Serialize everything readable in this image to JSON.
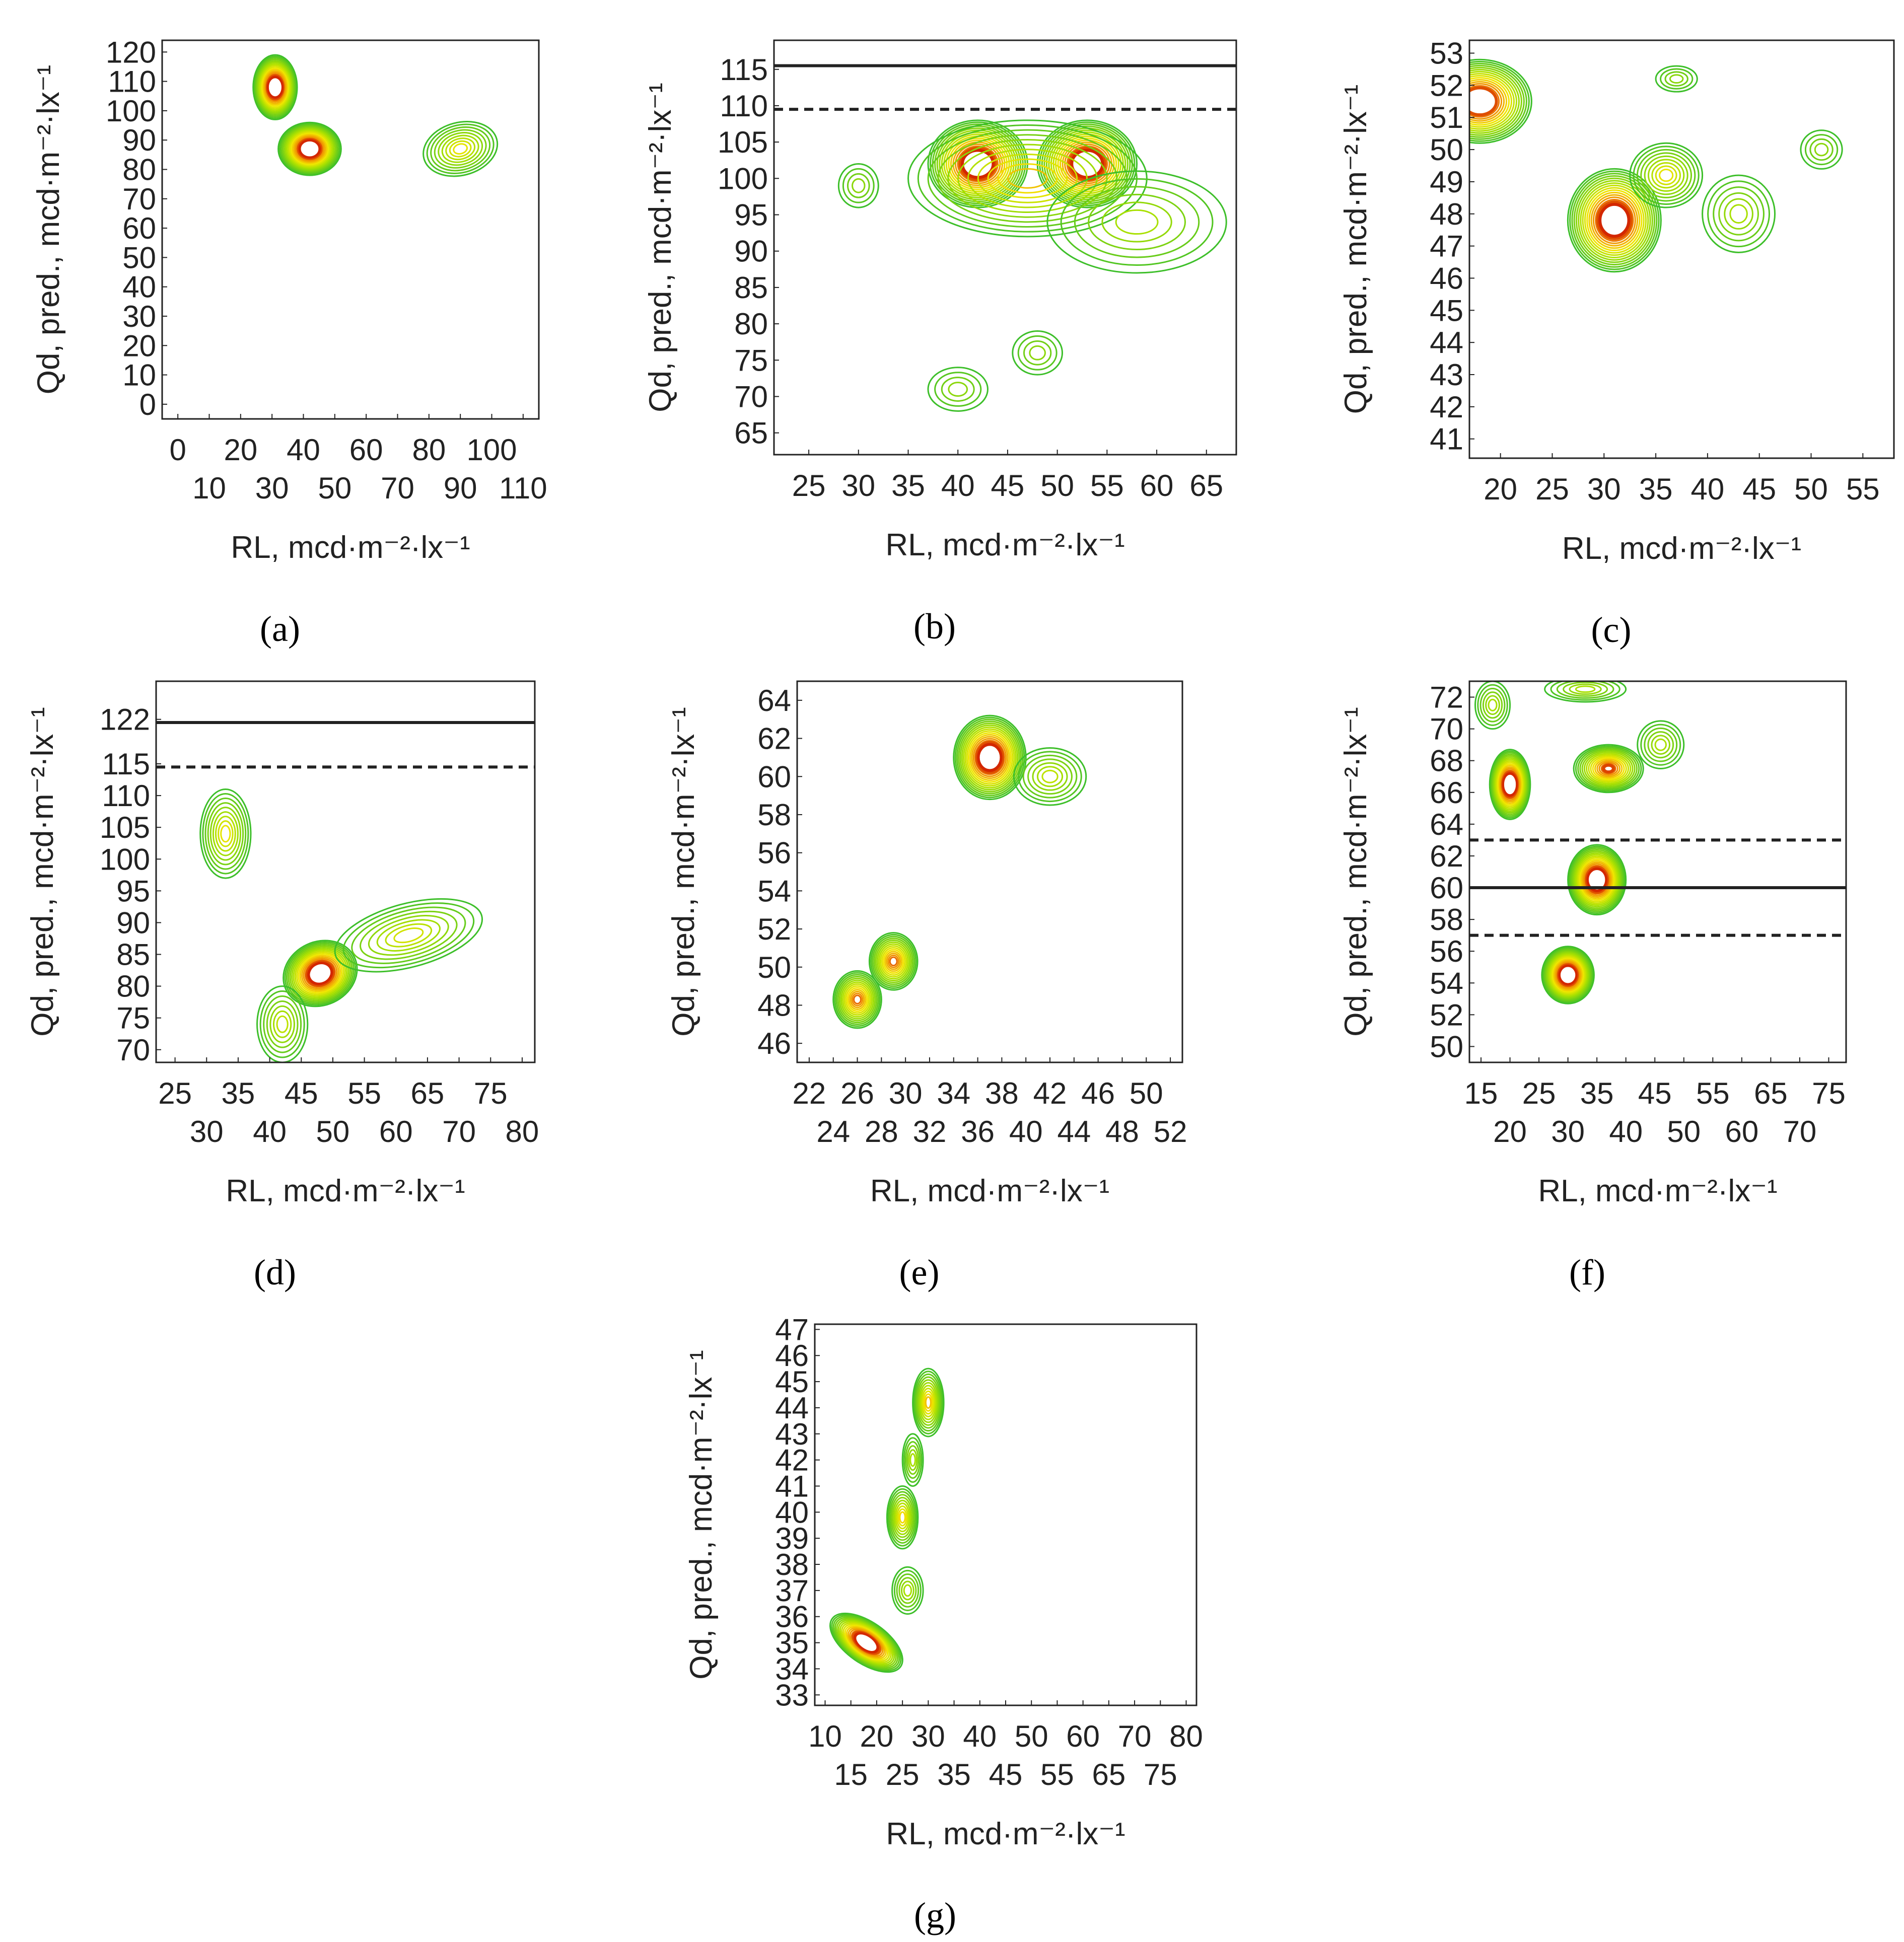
{
  "figure": {
    "colors": {
      "outer": "#3dbf2a",
      "mid": "#a8e000",
      "yellow": "#f2e600",
      "orange": "#f08a00",
      "red": "#c80000",
      "core": "#8b0000",
      "frame": "#222222",
      "refline": "#222222"
    }
  },
  "chart_data": [
    {
      "id": "a",
      "type": "contour",
      "panel_label": "(a)",
      "xlabel": "RL, mcd·m⁻²·lx⁻¹",
      "ylabel": "Qd, pred., mcd·m⁻²·lx⁻¹",
      "xlim": [
        -5,
        115
      ],
      "ylim": [
        -5,
        124
      ],
      "xticks_top": [
        0,
        20,
        40,
        60,
        80,
        100
      ],
      "xticks_bottom": [
        10,
        30,
        50,
        70,
        90,
        110
      ],
      "yticks": [
        0,
        10,
        20,
        30,
        40,
        50,
        60,
        70,
        80,
        90,
        100,
        110,
        120
      ],
      "reference_lines": [],
      "blobs": [
        {
          "x": 31,
          "y": 108,
          "rx": 7,
          "ry": 11,
          "peak": 1.0,
          "rot": 0
        },
        {
          "x": 42,
          "y": 87,
          "rx": 10,
          "ry": 9,
          "peak": 1.0,
          "rot": 0
        },
        {
          "x": 90,
          "y": 87,
          "rx": 12,
          "ry": 9,
          "peak": 0.45,
          "rot": -15
        }
      ]
    },
    {
      "id": "b",
      "type": "contour",
      "panel_label": "(b)",
      "xlabel": "RL, mcd·m⁻²·lx⁻¹",
      "ylabel": "Qd, pred., mcd·m⁻²·lx⁻¹",
      "xlim": [
        21.5,
        68
      ],
      "ylim": [
        62,
        119
      ],
      "xticks": [
        25,
        30,
        35,
        40,
        45,
        50,
        55,
        60,
        65
      ],
      "yticks": [
        65,
        70,
        75,
        80,
        85,
        90,
        95,
        100,
        105,
        110,
        115
      ],
      "reference_lines": [
        {
          "y": 115.5,
          "style": "solid"
        },
        {
          "y": 109.5,
          "style": "dashed"
        }
      ],
      "blobs": [
        {
          "x": 42,
          "y": 102,
          "rx": 5,
          "ry": 6,
          "peak": 1.0,
          "rot": 0
        },
        {
          "x": 53,
          "y": 102,
          "rx": 5,
          "ry": 6,
          "peak": 1.0,
          "rot": 0
        },
        {
          "x": 47,
          "y": 100,
          "rx": 12,
          "ry": 8,
          "peak": 0.55,
          "rot": 0
        },
        {
          "x": 58,
          "y": 94,
          "rx": 9,
          "ry": 7,
          "peak": 0.3,
          "rot": 0
        },
        {
          "x": 30,
          "y": 99,
          "rx": 2,
          "ry": 3,
          "peak": 0.22,
          "rot": 0
        },
        {
          "x": 40,
          "y": 71,
          "rx": 3,
          "ry": 3,
          "peak": 0.22,
          "rot": 0
        },
        {
          "x": 48,
          "y": 76,
          "rx": 2.5,
          "ry": 3,
          "peak": 0.22,
          "rot": 0
        }
      ]
    },
    {
      "id": "c",
      "type": "contour",
      "panel_label": "(c)",
      "xlabel": "RL, mcd·m⁻²·lx⁻¹",
      "ylabel": "Qd, pred., mcd·m⁻²·lx⁻¹",
      "xlim": [
        17,
        58
      ],
      "ylim": [
        40.4,
        53.4
      ],
      "xticks": [
        20,
        25,
        30,
        35,
        40,
        45,
        50,
        55
      ],
      "yticks": [
        41,
        42,
        43,
        44,
        45,
        46,
        47,
        48,
        49,
        50,
        51,
        52,
        53
      ],
      "reference_lines": [],
      "blobs": [
        {
          "x": 18,
          "y": 51.5,
          "rx": 5,
          "ry": 1.3,
          "peak": 0.95,
          "rot": 0
        },
        {
          "x": 31,
          "y": 47.8,
          "rx": 4.5,
          "ry": 1.6,
          "peak": 1.0,
          "rot": 0
        },
        {
          "x": 36,
          "y": 49.2,
          "rx": 3.5,
          "ry": 1.0,
          "peak": 0.45,
          "rot": 0
        },
        {
          "x": 43,
          "y": 48.0,
          "rx": 3.5,
          "ry": 1.2,
          "peak": 0.3,
          "rot": 0
        },
        {
          "x": 37,
          "y": 52.2,
          "rx": 2,
          "ry": 0.4,
          "peak": 0.22,
          "rot": 0
        },
        {
          "x": 51,
          "y": 50.0,
          "rx": 2,
          "ry": 0.6,
          "peak": 0.22,
          "rot": 0
        }
      ]
    },
    {
      "id": "d",
      "type": "contour",
      "panel_label": "(d)",
      "xlabel": "RL, mcd·m⁻²·lx⁻¹",
      "ylabel": "Qd, pred., mcd·m⁻²·lx⁻¹",
      "xlim": [
        22,
        82
      ],
      "ylim": [
        68,
        128
      ],
      "xticks_top": [
        25,
        35,
        45,
        55,
        65,
        75
      ],
      "xticks_bottom": [
        30,
        40,
        50,
        60,
        70,
        80
      ],
      "yticks": [
        70,
        75,
        80,
        85,
        90,
        95,
        100,
        105,
        110,
        115,
        122
      ],
      "reference_lines": [
        {
          "y": 121.5,
          "style": "solid"
        },
        {
          "y": 114.5,
          "style": "dashed"
        }
      ],
      "blobs": [
        {
          "x": 48,
          "y": 82,
          "rx": 6,
          "ry": 5,
          "peak": 1.0,
          "rot": -25
        },
        {
          "x": 62,
          "y": 88,
          "rx": 12,
          "ry": 5,
          "peak": 0.4,
          "rot": -15
        },
        {
          "x": 33,
          "y": 104,
          "rx": 4,
          "ry": 7,
          "peak": 0.45,
          "rot": 0
        },
        {
          "x": 42,
          "y": 74,
          "rx": 4,
          "ry": 6,
          "peak": 0.35,
          "rot": 0
        }
      ]
    },
    {
      "id": "e",
      "type": "contour",
      "panel_label": "(e)",
      "xlabel": "RL, mcd·m⁻²·lx⁻¹",
      "ylabel": "Qd, pred., mcd·m⁻²·lx⁻¹",
      "xlim": [
        21,
        53
      ],
      "ylim": [
        45,
        65
      ],
      "xticks_top": [
        22,
        26,
        30,
        34,
        38,
        42,
        46,
        50
      ],
      "xticks_bottom": [
        24,
        28,
        32,
        36,
        40,
        44,
        48,
        52
      ],
      "yticks": [
        46,
        48,
        50,
        52,
        54,
        56,
        58,
        60,
        62,
        64
      ],
      "reference_lines": [],
      "blobs": [
        {
          "x": 37,
          "y": 61,
          "rx": 3,
          "ry": 2.2,
          "peak": 1.0,
          "rot": 0
        },
        {
          "x": 42,
          "y": 60,
          "rx": 3,
          "ry": 1.5,
          "peak": 0.35,
          "rot": 0
        },
        {
          "x": 29,
          "y": 50.3,
          "rx": 2,
          "ry": 1.5,
          "peak": 0.7,
          "rot": 0
        },
        {
          "x": 26,
          "y": 48.3,
          "rx": 2,
          "ry": 1.5,
          "peak": 0.7,
          "rot": 0
        }
      ]
    },
    {
      "id": "f",
      "type": "contour",
      "panel_label": "(f)",
      "xlabel": "RL, mcd·m⁻²·lx⁻¹",
      "ylabel": "Qd, pred., mcd·m⁻²·lx⁻¹",
      "xlim": [
        13,
        78
      ],
      "ylim": [
        49,
        73
      ],
      "xticks_top": [
        15,
        25,
        35,
        45,
        55,
        65,
        75
      ],
      "xticks_bottom": [
        20,
        30,
        40,
        50,
        60,
        70
      ],
      "yticks": [
        50,
        52,
        54,
        56,
        58,
        60,
        62,
        64,
        66,
        68,
        70,
        72
      ],
      "reference_lines": [
        {
          "y": 63,
          "style": "dashed"
        },
        {
          "y": 60,
          "style": "solid"
        },
        {
          "y": 57,
          "style": "dashed"
        }
      ],
      "blobs": [
        {
          "x": 20,
          "y": 66.5,
          "rx": 3.5,
          "ry": 2.2,
          "peak": 1.0,
          "rot": 0
        },
        {
          "x": 37,
          "y": 67.5,
          "rx": 6,
          "ry": 1.5,
          "peak": 0.75,
          "rot": 0
        },
        {
          "x": 46,
          "y": 69,
          "rx": 4,
          "ry": 1.5,
          "peak": 0.3,
          "rot": 0
        },
        {
          "x": 35,
          "y": 60.5,
          "rx": 5,
          "ry": 2.2,
          "peak": 1.0,
          "rot": 0
        },
        {
          "x": 30,
          "y": 54.5,
          "rx": 4.5,
          "ry": 1.8,
          "peak": 1.0,
          "rot": 0
        },
        {
          "x": 17,
          "y": 71.5,
          "rx": 3,
          "ry": 1.5,
          "peak": 0.3,
          "rot": 0
        },
        {
          "x": 33,
          "y": 72.5,
          "rx": 7,
          "ry": 0.8,
          "peak": 0.3,
          "rot": 0
        }
      ]
    },
    {
      "id": "g",
      "type": "contour",
      "panel_label": "(g)",
      "xlabel": "RL, mcd·m⁻²·lx⁻¹",
      "ylabel": "Qd, pred., mcd·m⁻²·lx⁻¹",
      "xlim": [
        8,
        82
      ],
      "ylim": [
        32.6,
        47.2
      ],
      "xticks_top": [
        10,
        20,
        30,
        40,
        50,
        60,
        70,
        80
      ],
      "xticks_bottom": [
        15,
        25,
        35,
        45,
        55,
        65,
        75
      ],
      "yticks": [
        33,
        34,
        35,
        36,
        37,
        38,
        39,
        40,
        41,
        42,
        43,
        44,
        45,
        46,
        47
      ],
      "reference_lines": [],
      "blobs": [
        {
          "x": 18,
          "y": 35.0,
          "rx": 4,
          "ry": 1.6,
          "peak": 1.0,
          "rot": -55
        },
        {
          "x": 25,
          "y": 39.8,
          "rx": 3,
          "ry": 1.2,
          "peak": 0.5,
          "rot": 0
        },
        {
          "x": 30,
          "y": 44.2,
          "rx": 3,
          "ry": 1.3,
          "peak": 0.55,
          "rot": 0
        },
        {
          "x": 27,
          "y": 42.0,
          "rx": 2,
          "ry": 1.0,
          "peak": 0.3,
          "rot": 0
        },
        {
          "x": 26,
          "y": 37.0,
          "rx": 3,
          "ry": 0.9,
          "peak": 0.3,
          "rot": 0
        }
      ]
    }
  ]
}
